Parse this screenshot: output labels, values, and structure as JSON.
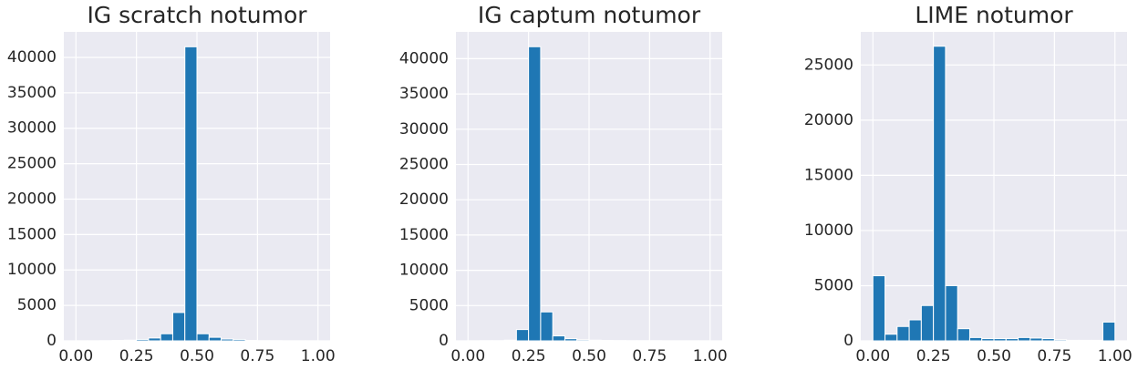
{
  "chart_data": [
    {
      "type": "histogram",
      "title": "IG scratch notumor",
      "color": "#1f77b4",
      "grid": true,
      "bins": [
        0,
        0.05,
        0.1,
        0.15,
        0.2,
        0.25,
        0.3,
        0.35,
        0.4,
        0.45,
        0.5,
        0.55,
        0.6,
        0.65,
        0.7,
        0.75,
        0.8,
        0.85,
        0.9,
        0.95,
        1
      ],
      "values": [
        10,
        10,
        20,
        50,
        100,
        200,
        400,
        1000,
        4000,
        41500,
        1000,
        500,
        250,
        200,
        50,
        20,
        20,
        10,
        10,
        10
      ],
      "xlim": [
        -0.05,
        1.05
      ],
      "ylim": [
        0,
        43600
      ],
      "xticks": [
        {
          "value": 0,
          "label": "0.00"
        },
        {
          "value": 0.25,
          "label": "0.25"
        },
        {
          "value": 0.5,
          "label": "0.50"
        },
        {
          "value": 0.75,
          "label": "0.75"
        },
        {
          "value": 1,
          "label": "1.00"
        }
      ],
      "yticks": [
        0,
        5000,
        10000,
        15000,
        20000,
        25000,
        30000,
        35000,
        40000
      ]
    },
    {
      "type": "histogram",
      "title": "IG captum notumor",
      "color": "#1f77b4",
      "grid": true,
      "bins": [
        0,
        0.05,
        0.1,
        0.15,
        0.2,
        0.25,
        0.3,
        0.35,
        0.4,
        0.45,
        0.5,
        0.55,
        0.6,
        0.65,
        0.7,
        0.75,
        0.8,
        0.85,
        0.9,
        0.95,
        1
      ],
      "values": [
        10,
        20,
        30,
        100,
        1600,
        41700,
        4100,
        700,
        300,
        150,
        100,
        60,
        40,
        30,
        20,
        20,
        10,
        10,
        10,
        10
      ],
      "xlim": [
        -0.05,
        1.05
      ],
      "ylim": [
        0,
        43800
      ],
      "xticks": [
        {
          "value": 0,
          "label": "0.00"
        },
        {
          "value": 0.25,
          "label": "0.25"
        },
        {
          "value": 0.5,
          "label": "0.50"
        },
        {
          "value": 0.75,
          "label": "0.75"
        },
        {
          "value": 1,
          "label": "1.00"
        }
      ],
      "yticks": [
        0,
        5000,
        10000,
        15000,
        20000,
        25000,
        30000,
        35000,
        40000
      ]
    },
    {
      "type": "histogram",
      "title": "LIME notumor",
      "color": "#1f77b4",
      "grid": true,
      "bins": [
        0,
        0.05,
        0.1,
        0.15,
        0.2,
        0.25,
        0.3,
        0.35,
        0.4,
        0.45,
        0.5,
        0.55,
        0.6,
        0.65,
        0.7,
        0.75,
        0.8,
        0.85,
        0.9,
        0.95,
        1
      ],
      "values": [
        5900,
        600,
        1300,
        1900,
        3200,
        26700,
        5000,
        1100,
        300,
        200,
        200,
        200,
        300,
        250,
        200,
        100,
        50,
        50,
        50,
        1700
      ],
      "xlim": [
        -0.05,
        1.05
      ],
      "ylim": [
        0,
        28000
      ],
      "xticks": [
        {
          "value": 0,
          "label": "0.00"
        },
        {
          "value": 0.25,
          "label": "0.25"
        },
        {
          "value": 0.5,
          "label": "0.50"
        },
        {
          "value": 0.75,
          "label": "0.75"
        },
        {
          "value": 1,
          "label": "1.00"
        }
      ],
      "yticks": [
        0,
        5000,
        10000,
        15000,
        20000,
        25000
      ]
    }
  ]
}
